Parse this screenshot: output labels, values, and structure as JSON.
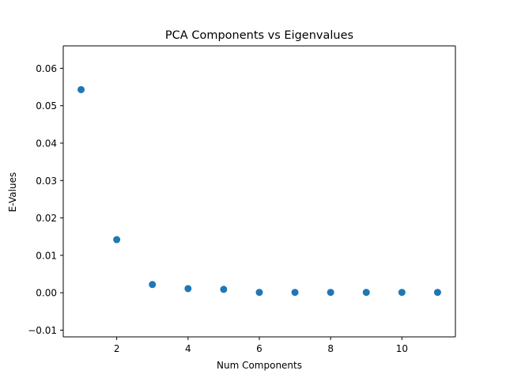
{
  "chart_data": {
    "type": "scatter",
    "title": "PCA Components vs Eigenvalues",
    "xlabel": "Num Components",
    "ylabel": "E-Values",
    "xlim": [
      0.5,
      11.5
    ],
    "ylim": [
      -0.0118,
      0.066
    ],
    "xticks": [
      2,
      4,
      6,
      8,
      10
    ],
    "xtick_labels": [
      "2",
      "4",
      "6",
      "8",
      "10"
    ],
    "yticks": [
      -0.01,
      0.0,
      0.01,
      0.02,
      0.03,
      0.04,
      0.05,
      0.06
    ],
    "ytick_labels": [
      "−0.01",
      "0.00",
      "0.01",
      "0.02",
      "0.03",
      "0.04",
      "0.05",
      "0.06"
    ],
    "grid": false,
    "marker_color": "#1f77b4",
    "series": [
      {
        "x": [
          1,
          2,
          3,
          4,
          5,
          6,
          7,
          8,
          9,
          10,
          11
        ],
        "y": [
          0.0543,
          0.0142,
          0.0022,
          0.0011,
          0.0009,
          0.0001,
          0.0001,
          0.0001,
          0.0001,
          0.0001,
          0.0001
        ]
      }
    ]
  }
}
